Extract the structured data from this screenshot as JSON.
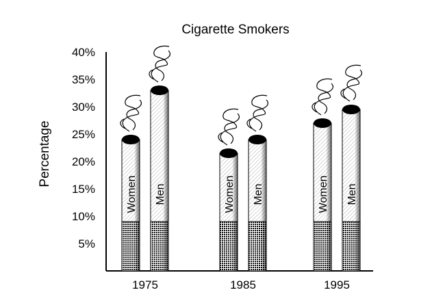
{
  "chart_data": {
    "type": "bar",
    "title": "Cigarette Smokers",
    "ylabel": "Percentage",
    "xlabel": "",
    "ylim": [
      0,
      40
    ],
    "yticks": [
      "5%",
      "10%",
      "15%",
      "20%",
      "25%",
      "30%",
      "35%",
      "40%"
    ],
    "categories": [
      "1975",
      "1985",
      "1995"
    ],
    "series": [
      {
        "name": "Women",
        "values": [
          24,
          21.5,
          27
        ]
      },
      {
        "name": "Men",
        "values": [
          33,
          24,
          29.5
        ]
      }
    ],
    "grid": false,
    "legend": "labels on bars",
    "style": "cigarette pictograph bars with smoke"
  }
}
